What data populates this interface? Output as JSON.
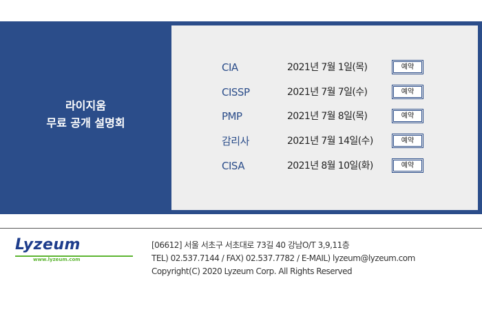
{
  "banner": {
    "title_line1": "라이지움",
    "title_line2": "무료 공개 설명회",
    "button_label": "예약",
    "schedule": [
      {
        "course": "CIA",
        "date": "2021년 7월 1일(목)"
      },
      {
        "course": "CISSP",
        "date": "2021년 7월 7일(수)"
      },
      {
        "course": "PMP",
        "date": "2021년 7월 8일(목)"
      },
      {
        "course": "감리사",
        "date": "2021년 7월 14일(수)"
      },
      {
        "course": "CISA",
        "date": "2021년 8월 10일(화)"
      }
    ]
  },
  "footer": {
    "logo_text": "Lyzeum",
    "logo_url": "www.lyzeum.com",
    "address": "[06612] 서울 서초구 서초대로 73길 40 강남O/T 3,9,11층",
    "contact": "TEL) 02.537.7144 / FAX) 02.537.7782 / E-MAIL) lyzeum@lyzeum.com",
    "copyright": "Copyright(C) 2020 Lyzeum Corp. All Rights Reserved"
  },
  "colors": {
    "banner_bg": "#2b4d8a",
    "panel_bg": "#eeeeee",
    "course_text": "#2b4d8a",
    "logo_blue": "#1e3d8c",
    "logo_green": "#5cb531"
  }
}
